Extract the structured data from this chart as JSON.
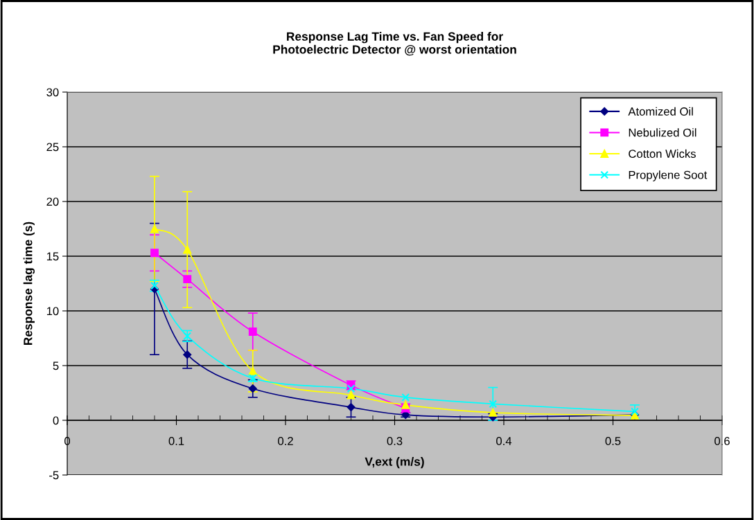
{
  "chart_data": {
    "type": "line",
    "title": "Response Lag Time vs. Fan Speed for\nPhotoelectric Detector @ worst orientation",
    "xlabel": "V,ext (m/s)",
    "ylabel": "Response lag time (s)",
    "x": [
      0.08,
      0.11,
      0.17,
      0.26,
      0.31,
      0.39,
      0.52
    ],
    "series": [
      {
        "name": "Atomized Oil",
        "color": "#000080",
        "marker": "diamond",
        "values": [
          12.0,
          6.0,
          2.9,
          1.2,
          0.5,
          0.3,
          0.5
        ],
        "errors": [
          6.0,
          1.25,
          0.8,
          0.9,
          0.2,
          0.3,
          null
        ]
      },
      {
        "name": "Nebulized Oil",
        "color": "#ff00ff",
        "marker": "square",
        "values": [
          15.3,
          12.9,
          8.1,
          3.2,
          1.1,
          null,
          null
        ],
        "errors": [
          1.65,
          0.75,
          1.7,
          0.4,
          0.4,
          null,
          null
        ]
      },
      {
        "name": "Cotton Wicks",
        "color": "#ffff00",
        "marker": "triangle",
        "values": [
          17.5,
          15.6,
          4.5,
          2.3,
          1.4,
          0.7,
          0.45
        ],
        "errors": [
          4.8,
          5.3,
          1.9,
          null,
          null,
          null,
          null
        ]
      },
      {
        "name": "Propylene Soot",
        "color": "#00ffff",
        "marker": "cross",
        "values": [
          12.3,
          7.7,
          3.85,
          2.9,
          2.1,
          1.5,
          0.8
        ],
        "errors": [
          0.5,
          0.5,
          0.3,
          null,
          null,
          1.5,
          0.6
        ]
      }
    ],
    "xlim": [
      0,
      0.6
    ],
    "xticks": [
      0,
      0.1,
      0.2,
      0.3,
      0.4,
      0.5,
      0.6
    ],
    "ylim": [
      -5,
      30
    ],
    "yticks": [
      -5,
      0,
      5,
      10,
      15,
      20,
      25,
      30
    ],
    "grid": "y",
    "legend": "top right"
  }
}
